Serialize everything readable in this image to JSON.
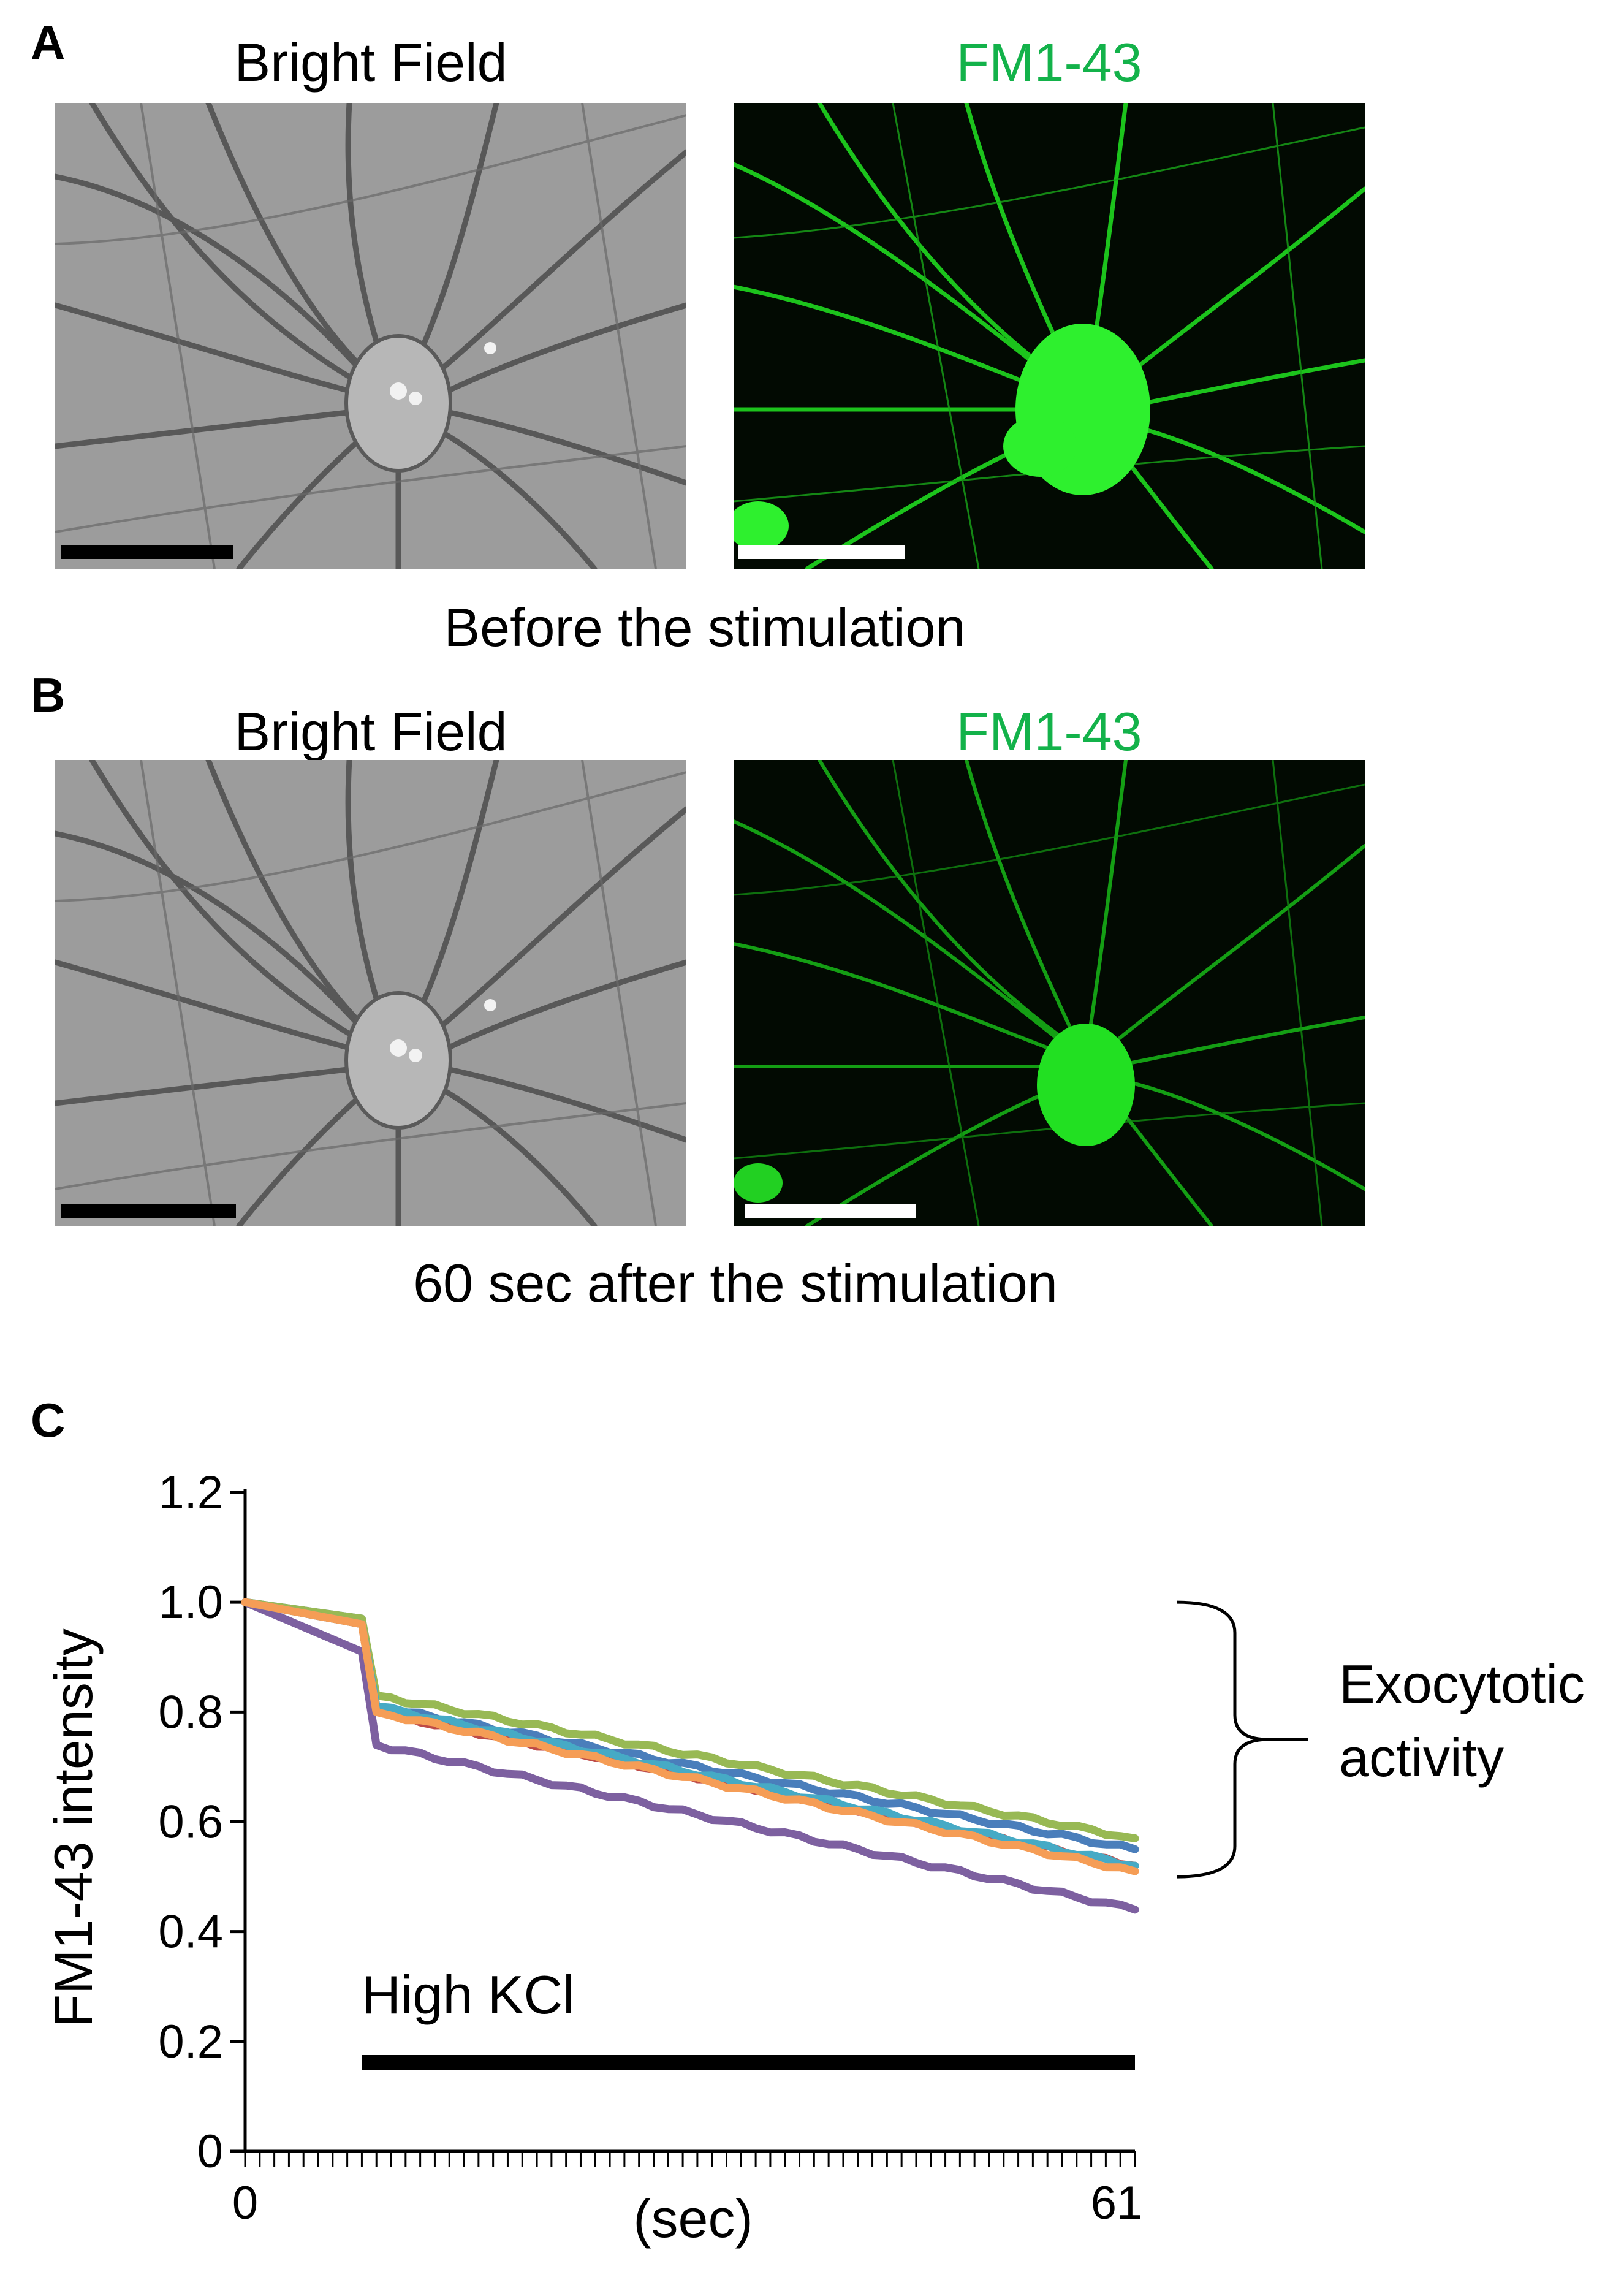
{
  "panels": {
    "A": {
      "letter": "A",
      "left_title": "Bright Field",
      "right_title": "FM1-43",
      "caption": "Before the stimulation"
    },
    "B": {
      "letter": "B",
      "left_title": "Bright Field",
      "right_title": "FM1-43",
      "caption": "60 sec after the stimulation"
    },
    "C": {
      "letter": "C"
    }
  },
  "colors": {
    "fm_label": "#13b24a",
    "fluorescence": "#22ee22",
    "brightfield_bg": "#9a9a9a",
    "series": [
      "#4a7ebb",
      "#be4b48",
      "#98b954",
      "#7d60a0",
      "#46aac5",
      "#f59d56"
    ]
  },
  "chart_data": {
    "type": "line",
    "title": "",
    "xlabel": "(sec)",
    "ylabel": "FM1-43 intensity",
    "xlim": [
      0,
      61
    ],
    "ylim": [
      0,
      1.2
    ],
    "x_tick_labels": [
      "0",
      "61"
    ],
    "y_ticks": [
      "0",
      "0.2",
      "0.4",
      "0.6",
      "0.8",
      "1.0",
      "1.2"
    ],
    "x": [
      0,
      8,
      9,
      61
    ],
    "series": [
      {
        "values": [
          1.0,
          0.97,
          0.81,
          0.55
        ],
        "color": "#4a7ebb"
      },
      {
        "values": [
          1.0,
          0.96,
          0.8,
          0.52
        ],
        "color": "#be4b48"
      },
      {
        "values": [
          1.0,
          0.97,
          0.83,
          0.57
        ],
        "color": "#98b954"
      },
      {
        "values": [
          1.0,
          0.91,
          0.74,
          0.44
        ],
        "color": "#7d60a0"
      },
      {
        "values": [
          1.0,
          0.96,
          0.81,
          0.52
        ],
        "color": "#46aac5"
      },
      {
        "values": [
          1.0,
          0.96,
          0.8,
          0.51
        ],
        "color": "#f59d56"
      }
    ],
    "annotations": {
      "stimulus_label": "High KCl",
      "stimulus_range": [
        8,
        61
      ],
      "bracket_label_1": "Exocytotic",
      "bracket_label_2": "activity",
      "bracket_range": [
        0.5,
        1.0
      ]
    },
    "grid": false,
    "legend": "none"
  }
}
